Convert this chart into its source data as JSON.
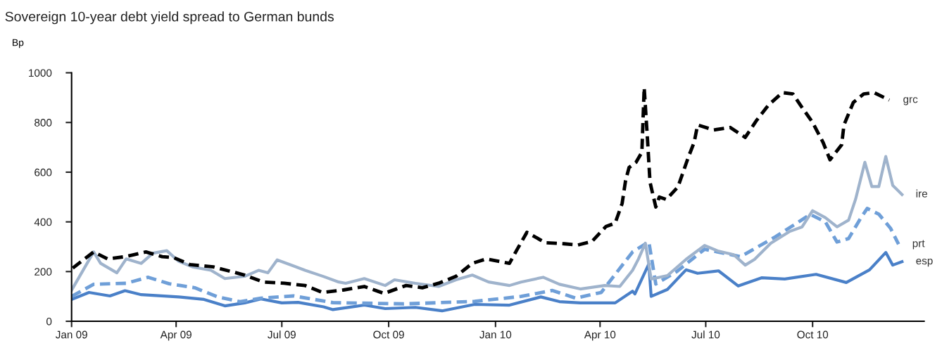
{
  "chart_data": {
    "type": "line",
    "title": "Sovereign 10-year debt yield spread to German bunds",
    "ylabel": "Bp",
    "xlim": [
      "2009-01-01",
      "2011-01-05"
    ],
    "xticks": [
      {
        "value": "2009-01-01",
        "label": "Jan 09"
      },
      {
        "value": "2009-04-01",
        "label": "Apr 09"
      },
      {
        "value": "2009-07-01",
        "label": "Jul 09"
      },
      {
        "value": "2009-10-01",
        "label": "Oct 09"
      },
      {
        "value": "2010-01-01",
        "label": "Jan 10"
      },
      {
        "value": "2010-04-01",
        "label": "Apr 10"
      },
      {
        "value": "2010-07-01",
        "label": "Jul 10"
      },
      {
        "value": "2010-10-01",
        "label": "Oct 10"
      }
    ],
    "ylim": [
      0,
      1000
    ],
    "yticks": [
      0,
      200,
      400,
      600,
      800,
      1000
    ],
    "grid": false,
    "legend": false,
    "series": [
      {
        "name": "esp",
        "color": "#4a80c8",
        "line_style": "solid",
        "x": [
          "2009-01-01",
          "2009-01-16",
          "2009-02-03",
          "2009-02-16",
          "2009-03-02",
          "2009-04-03",
          "2009-04-25",
          "2009-05-13",
          "2009-05-30",
          "2009-06-13",
          "2009-07-01",
          "2009-07-15",
          "2009-08-06",
          "2009-08-14",
          "2009-09-10",
          "2009-09-28",
          "2009-10-24",
          "2009-11-16",
          "2009-12-14",
          "2010-01-13",
          "2010-02-09",
          "2010-02-25",
          "2010-03-15",
          "2010-04-14",
          "2010-04-29",
          "2010-05-01",
          "2010-05-13",
          "2010-05-15",
          "2010-05-29",
          "2010-06-14",
          "2010-06-24",
          "2010-07-12",
          "2010-07-29",
          "2010-08-18",
          "2010-09-07",
          "2010-10-04",
          "2010-10-30",
          "2010-11-19",
          "2010-12-03",
          "2010-12-09",
          "2010-12-17"
        ],
        "values": [
          88,
          116,
          102,
          123,
          107,
          98,
          88,
          62,
          74,
          90,
          74,
          76,
          58,
          47,
          65,
          51,
          56,
          42,
          68,
          65,
          98,
          79,
          74,
          74,
          121,
          110,
          231,
          100,
          128,
          207,
          193,
          203,
          142,
          175,
          170,
          189,
          156,
          207,
          277,
          226,
          240
        ]
      },
      {
        "name": "prt",
        "color": "#6f9fd8",
        "line_style": "dashed",
        "x": [
          "2009-01-01",
          "2009-01-20",
          "2009-02-17",
          "2009-03-08",
          "2009-03-26",
          "2009-04-17",
          "2009-05-07",
          "2009-05-26",
          "2009-06-13",
          "2009-07-11",
          "2009-08-14",
          "2009-10-14",
          "2009-12-14",
          "2010-01-23",
          "2010-02-19",
          "2010-03-11",
          "2010-04-02",
          "2010-04-29",
          "2010-05-13",
          "2010-05-19",
          "2010-06-06",
          "2010-06-30",
          "2010-07-31",
          "2010-08-30",
          "2010-09-29",
          "2010-10-12",
          "2010-10-22",
          "2010-11-01",
          "2010-11-11",
          "2010-11-17",
          "2010-11-27",
          "2010-12-07",
          "2010-12-14"
        ],
        "values": [
          100,
          149,
          153,
          177,
          151,
          135,
          98,
          79,
          93,
          102,
          75,
          70,
          80,
          100,
          124,
          93,
          116,
          279,
          320,
          150,
          200,
          290,
          260,
          340,
          430,
          400,
          319,
          333,
          412,
          454,
          431,
          375,
          310
        ]
      },
      {
        "name": "ire",
        "color": "#9fb3cc",
        "line_style": "solid",
        "x": [
          "2009-01-01",
          "2009-01-20",
          "2009-01-26",
          "2009-02-09",
          "2009-02-17",
          "2009-03-02",
          "2009-03-12",
          "2009-03-24",
          "2009-04-03",
          "2009-04-15",
          "2009-05-01",
          "2009-05-13",
          "2009-05-30",
          "2009-06-11",
          "2009-06-19",
          "2009-06-27",
          "2009-07-11",
          "2009-07-21",
          "2009-08-06",
          "2009-08-19",
          "2009-08-25",
          "2009-09-10",
          "2009-09-28",
          "2009-10-06",
          "2009-10-24",
          "2009-11-13",
          "2009-11-28",
          "2009-12-12",
          "2009-12-26",
          "2010-01-13",
          "2010-01-23",
          "2010-02-11",
          "2010-02-25",
          "2010-03-15",
          "2010-04-05",
          "2010-04-18",
          "2010-04-29",
          "2010-05-04",
          "2010-05-10",
          "2010-05-15",
          "2010-05-29",
          "2010-06-14",
          "2010-06-30",
          "2010-07-12",
          "2010-07-25",
          "2010-08-04",
          "2010-08-12",
          "2010-08-26",
          "2010-09-11",
          "2010-09-22",
          "2010-10-01",
          "2010-10-12",
          "2010-10-22",
          "2010-11-01",
          "2010-11-07",
          "2010-11-15",
          "2010-11-21",
          "2010-11-27",
          "2010-12-03",
          "2010-12-09",
          "2010-12-17"
        ],
        "values": [
          125,
          279,
          233,
          195,
          251,
          233,
          274,
          284,
          242,
          219,
          205,
          172,
          181,
          205,
          195,
          247,
          223,
          205,
          180,
          158,
          153,
          172,
          144,
          167,
          153,
          140,
          167,
          186,
          158,
          144,
          158,
          177,
          149,
          130,
          144,
          140,
          205,
          250,
          314,
          170,
          184,
          249,
          305,
          282,
          268,
          226,
          249,
          314,
          361,
          380,
          445,
          417,
          380,
          407,
          491,
          640,
          542,
          542,
          663,
          547,
          510
        ]
      },
      {
        "name": "grc",
        "color": "#000000",
        "line_style": "dashed",
        "x": [
          "2009-01-02",
          "2009-01-20",
          "2009-02-01",
          "2009-02-16",
          "2009-03-06",
          "2009-03-20",
          "2009-03-30",
          "2009-04-13",
          "2009-05-03",
          "2009-05-30",
          "2009-06-15",
          "2009-07-03",
          "2009-07-21",
          "2009-08-05",
          "2009-08-23",
          "2009-09-10",
          "2009-09-27",
          "2009-10-16",
          "2009-10-30",
          "2009-11-13",
          "2009-11-28",
          "2009-12-12",
          "2009-12-24",
          "2010-01-13",
          "2010-01-19",
          "2010-01-28",
          "2010-02-13",
          "2010-03-01",
          "2010-03-13",
          "2010-03-25",
          "2010-04-06",
          "2010-04-14",
          "2010-04-20",
          "2010-04-23",
          "2010-04-26",
          "2010-05-02",
          "2010-05-07",
          "2010-05-09",
          "2010-05-12",
          "2010-05-14",
          "2010-05-16",
          "2010-05-19",
          "2010-05-22",
          "2010-05-28",
          "2010-06-07",
          "2010-06-16",
          "2010-06-21",
          "2010-06-24",
          "2010-07-08",
          "2010-07-22",
          "2010-08-04",
          "2010-08-14",
          "2010-08-24",
          "2010-09-05",
          "2010-09-14",
          "2010-09-22",
          "2010-10-01",
          "2010-10-10",
          "2010-10-16",
          "2010-10-26",
          "2010-10-28",
          "2010-11-05",
          "2010-11-14",
          "2010-11-23",
          "2010-12-06"
        ],
        "values": [
          214,
          279,
          251,
          260,
          279,
          260,
          256,
          228,
          219,
          186,
          158,
          153,
          144,
          116,
          126,
          140,
          112,
          144,
          135,
          153,
          181,
          233,
          251,
          233,
          284,
          358,
          316,
          312,
          307,
          321,
          381,
          395,
          474,
          567,
          619,
          640,
          680,
          940,
          720,
          560,
          520,
          460,
          500,
          490,
          540,
          660,
          720,
          790,
          770,
          780,
          740,
          810,
          870,
          920,
          915,
          860,
          800,
          720,
          650,
          710,
          790,
          880,
          915,
          920,
          890
        ]
      }
    ]
  }
}
